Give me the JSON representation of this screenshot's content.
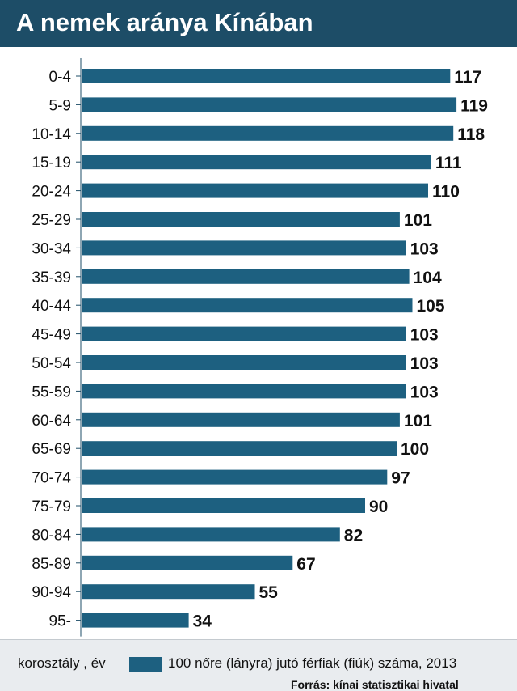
{
  "chart_data": {
    "type": "bar",
    "orientation": "horizontal",
    "title": "A nemek aránya Kínában",
    "xlabel": "korosztály , év",
    "categories": [
      "0-4",
      "5-9",
      "10-14",
      "15-19",
      "20-24",
      "25-29",
      "30-34",
      "35-39",
      "40-44",
      "45-49",
      "50-54",
      "55-59",
      "60-64",
      "65-69",
      "70-74",
      "75-79",
      "80-84",
      "85-89",
      "90-94",
      "95-"
    ],
    "series": [
      {
        "name": "100 nőre (lányra) jutó férfiak (fiúk) száma, 2013",
        "values": [
          117,
          119,
          118,
          111,
          110,
          101,
          103,
          104,
          105,
          103,
          103,
          103,
          101,
          100,
          97,
          90,
          82,
          67,
          55,
          34
        ]
      }
    ],
    "grid": false,
    "legend_position": "bottom",
    "colors": {
      "bar": "#1d6080",
      "title_background": "#1d4d67",
      "footer_background": "#e9ecef"
    }
  },
  "footer": {
    "source": "Forrás: kínai statisztikai hivatal"
  }
}
